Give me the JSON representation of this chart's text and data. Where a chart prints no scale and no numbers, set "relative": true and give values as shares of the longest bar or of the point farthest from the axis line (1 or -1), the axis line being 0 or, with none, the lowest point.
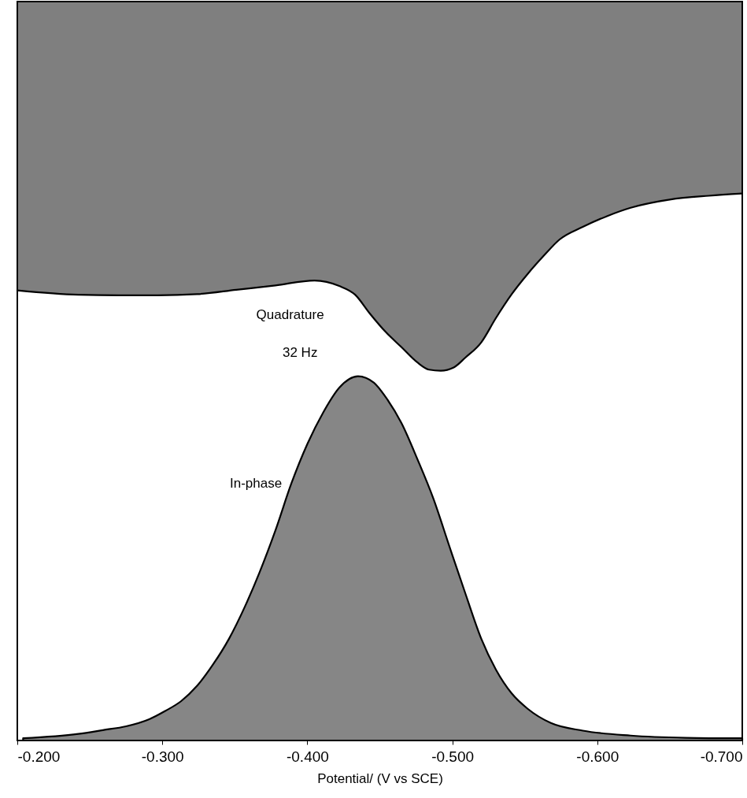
{
  "chart_data": {
    "type": "area",
    "relative": true,
    "xlabel": "Potential/ (V vs SCE)",
    "xlim": [
      -0.2,
      -0.7
    ],
    "xticks": [
      {
        "value": -0.2,
        "label": "-0.200"
      },
      {
        "value": -0.3,
        "label": "-0.300"
      },
      {
        "value": -0.4,
        "label": "-0.400"
      },
      {
        "value": -0.5,
        "label": "-0.500"
      },
      {
        "value": -0.6,
        "label": "-0.600"
      },
      {
        "value": -0.7,
        "label": "-0.700"
      }
    ],
    "annotations": [
      "32 Hz"
    ],
    "series": [
      {
        "name": "Quadrature",
        "type": "line",
        "color": "#000000",
        "x": [
          -0.2,
          -0.242,
          -0.27,
          -0.297,
          -0.324,
          -0.351,
          -0.378,
          -0.405,
          -0.422,
          -0.433,
          -0.443,
          -0.454,
          -0.465,
          -0.476,
          -0.484,
          -0.492,
          -0.501,
          -0.509,
          -0.52,
          -0.53,
          -0.541,
          -0.552,
          -0.563,
          -0.574,
          -0.59,
          -0.607,
          -0.623,
          -0.65,
          -0.677,
          -0.7
        ],
        "values": [
          0.823,
          0.815,
          0.814,
          0.814,
          0.816,
          0.824,
          0.832,
          0.841,
          0.831,
          0.815,
          0.781,
          0.747,
          0.719,
          0.691,
          0.678,
          0.676,
          0.682,
          0.7,
          0.728,
          0.772,
          0.816,
          0.853,
          0.886,
          0.916,
          0.939,
          0.959,
          0.974,
          0.989,
          0.996,
          1
        ],
        "lower": [
          0.823,
          0.815,
          0.814,
          0.814,
          0.816,
          0.824,
          0.832,
          0.841,
          0.831,
          0.815,
          0.781,
          0.747,
          0.719,
          0.691,
          0.678,
          0.676,
          0.682,
          0.7,
          0.728,
          0.772,
          0.816,
          0.853,
          0.886,
          0.916,
          0.939,
          0.959,
          0.974,
          0.989,
          0.996,
          1
        ],
        "upper": [
          1.351,
          1.351,
          1.351,
          1.351,
          1.351,
          1.351,
          1.351,
          1.351,
          1.351,
          1.351,
          1.351,
          1.351,
          1.351,
          1.351,
          1.351,
          1.351,
          1.351,
          1.351,
          1.351,
          1.351,
          1.351,
          1.351,
          1.351,
          1.351,
          1.351,
          1.351,
          1.351,
          1.351,
          1.351,
          1.351
        ]
      },
      {
        "name": "In-phase",
        "color": "#868686",
        "x": [
          -0.204,
          -0.242,
          -0.259,
          -0.275,
          -0.291,
          -0.302,
          -0.313,
          -0.324,
          -0.335,
          -0.346,
          -0.357,
          -0.367,
          -0.378,
          -0.389,
          -0.4,
          -0.411,
          -0.422,
          -0.435,
          -0.446,
          -0.454,
          -0.465,
          -0.476,
          -0.487,
          -0.498,
          -0.509,
          -0.52,
          -0.53,
          -0.541,
          -0.552,
          -0.568,
          -0.59,
          -0.623,
          -0.661,
          -0.7
        ],
        "values": [
          0.004,
          0.012,
          0.019,
          0.026,
          0.039,
          0.054,
          0.072,
          0.1,
          0.139,
          0.186,
          0.245,
          0.307,
          0.384,
          0.47,
          0.542,
          0.6,
          0.645,
          0.666,
          0.654,
          0.628,
          0.58,
          0.514,
          0.442,
          0.355,
          0.269,
          0.186,
          0.13,
          0.086,
          0.058,
          0.032,
          0.018,
          0.009,
          0.005,
          0.004
        ]
      }
    ]
  }
}
